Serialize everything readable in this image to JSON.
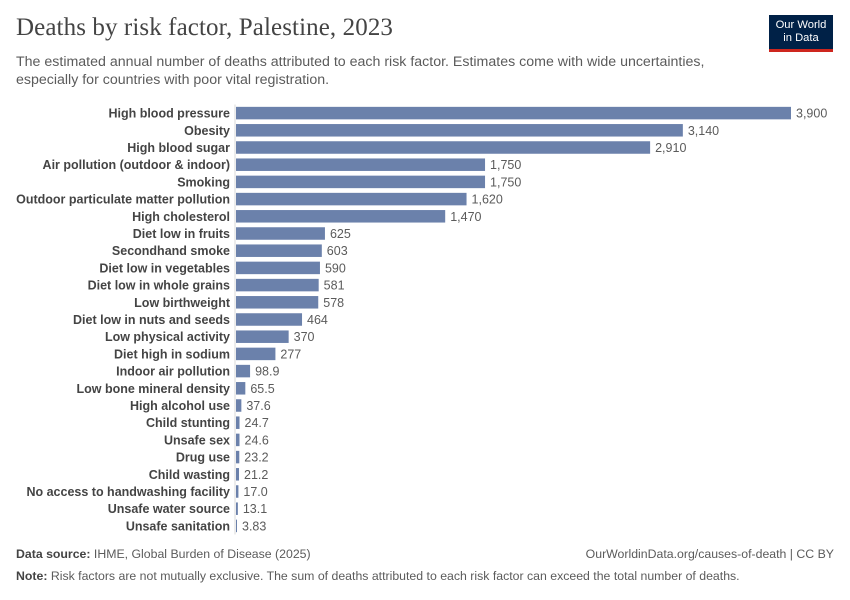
{
  "header": {
    "title": "Deaths by risk factor, Palestine, 2023",
    "subtitle": "The estimated annual number of deaths attributed to each risk factor. Estimates come with wide uncertainties, especially for countries with poor vital registration.",
    "logo_line1": "Our World",
    "logo_line2": "in Data"
  },
  "colors": {
    "bar": "#6b81ab",
    "axis": "#d9d9d9",
    "label": "#444444",
    "value": "#5b5b5b"
  },
  "chart_data": {
    "type": "bar",
    "orientation": "horizontal",
    "title": "Deaths by risk factor, Palestine, 2023",
    "xlabel": "",
    "ylabel": "",
    "xlim": [
      0,
      3900
    ],
    "categories": [
      "High blood pressure",
      "Obesity",
      "High blood sugar",
      "Air pollution (outdoor & indoor)",
      "Smoking",
      "Outdoor particulate matter pollution",
      "High cholesterol",
      "Diet low in fruits",
      "Secondhand smoke",
      "Diet low in vegetables",
      "Diet low in whole grains",
      "Low birthweight",
      "Diet low in nuts and seeds",
      "Low physical activity",
      "Diet high in sodium",
      "Indoor air pollution",
      "Low bone mineral density",
      "High alcohol use",
      "Child stunting",
      "Unsafe sex",
      "Drug use",
      "Child wasting",
      "No access to handwashing facility",
      "Unsafe water source",
      "Unsafe sanitation"
    ],
    "values": [
      3900,
      3140,
      2910,
      1750,
      1750,
      1620,
      1470,
      625,
      603,
      590,
      581,
      578,
      464,
      370,
      277,
      98.9,
      65.5,
      37.6,
      24.7,
      24.6,
      23.2,
      21.2,
      17.0,
      13.1,
      3.83
    ],
    "value_labels": [
      "3,900",
      "3,140",
      "2,910",
      "1,750",
      "1,750",
      "1,620",
      "1,470",
      "625",
      "603",
      "590",
      "581",
      "578",
      "464",
      "370",
      "277",
      "98.9",
      "65.5",
      "37.6",
      "24.7",
      "24.6",
      "23.2",
      "21.2",
      "17.0",
      "13.1",
      "3.83"
    ]
  },
  "footer": {
    "source_label": "Data source:",
    "source_text": "IHME, Global Burden of Disease (2025)",
    "url_text": "OurWorldinData.org/causes-of-death | CC BY",
    "note_label": "Note:",
    "note_text": "Risk factors are not mutually exclusive. The sum of deaths attributed to each risk factor can exceed the total number of deaths."
  }
}
